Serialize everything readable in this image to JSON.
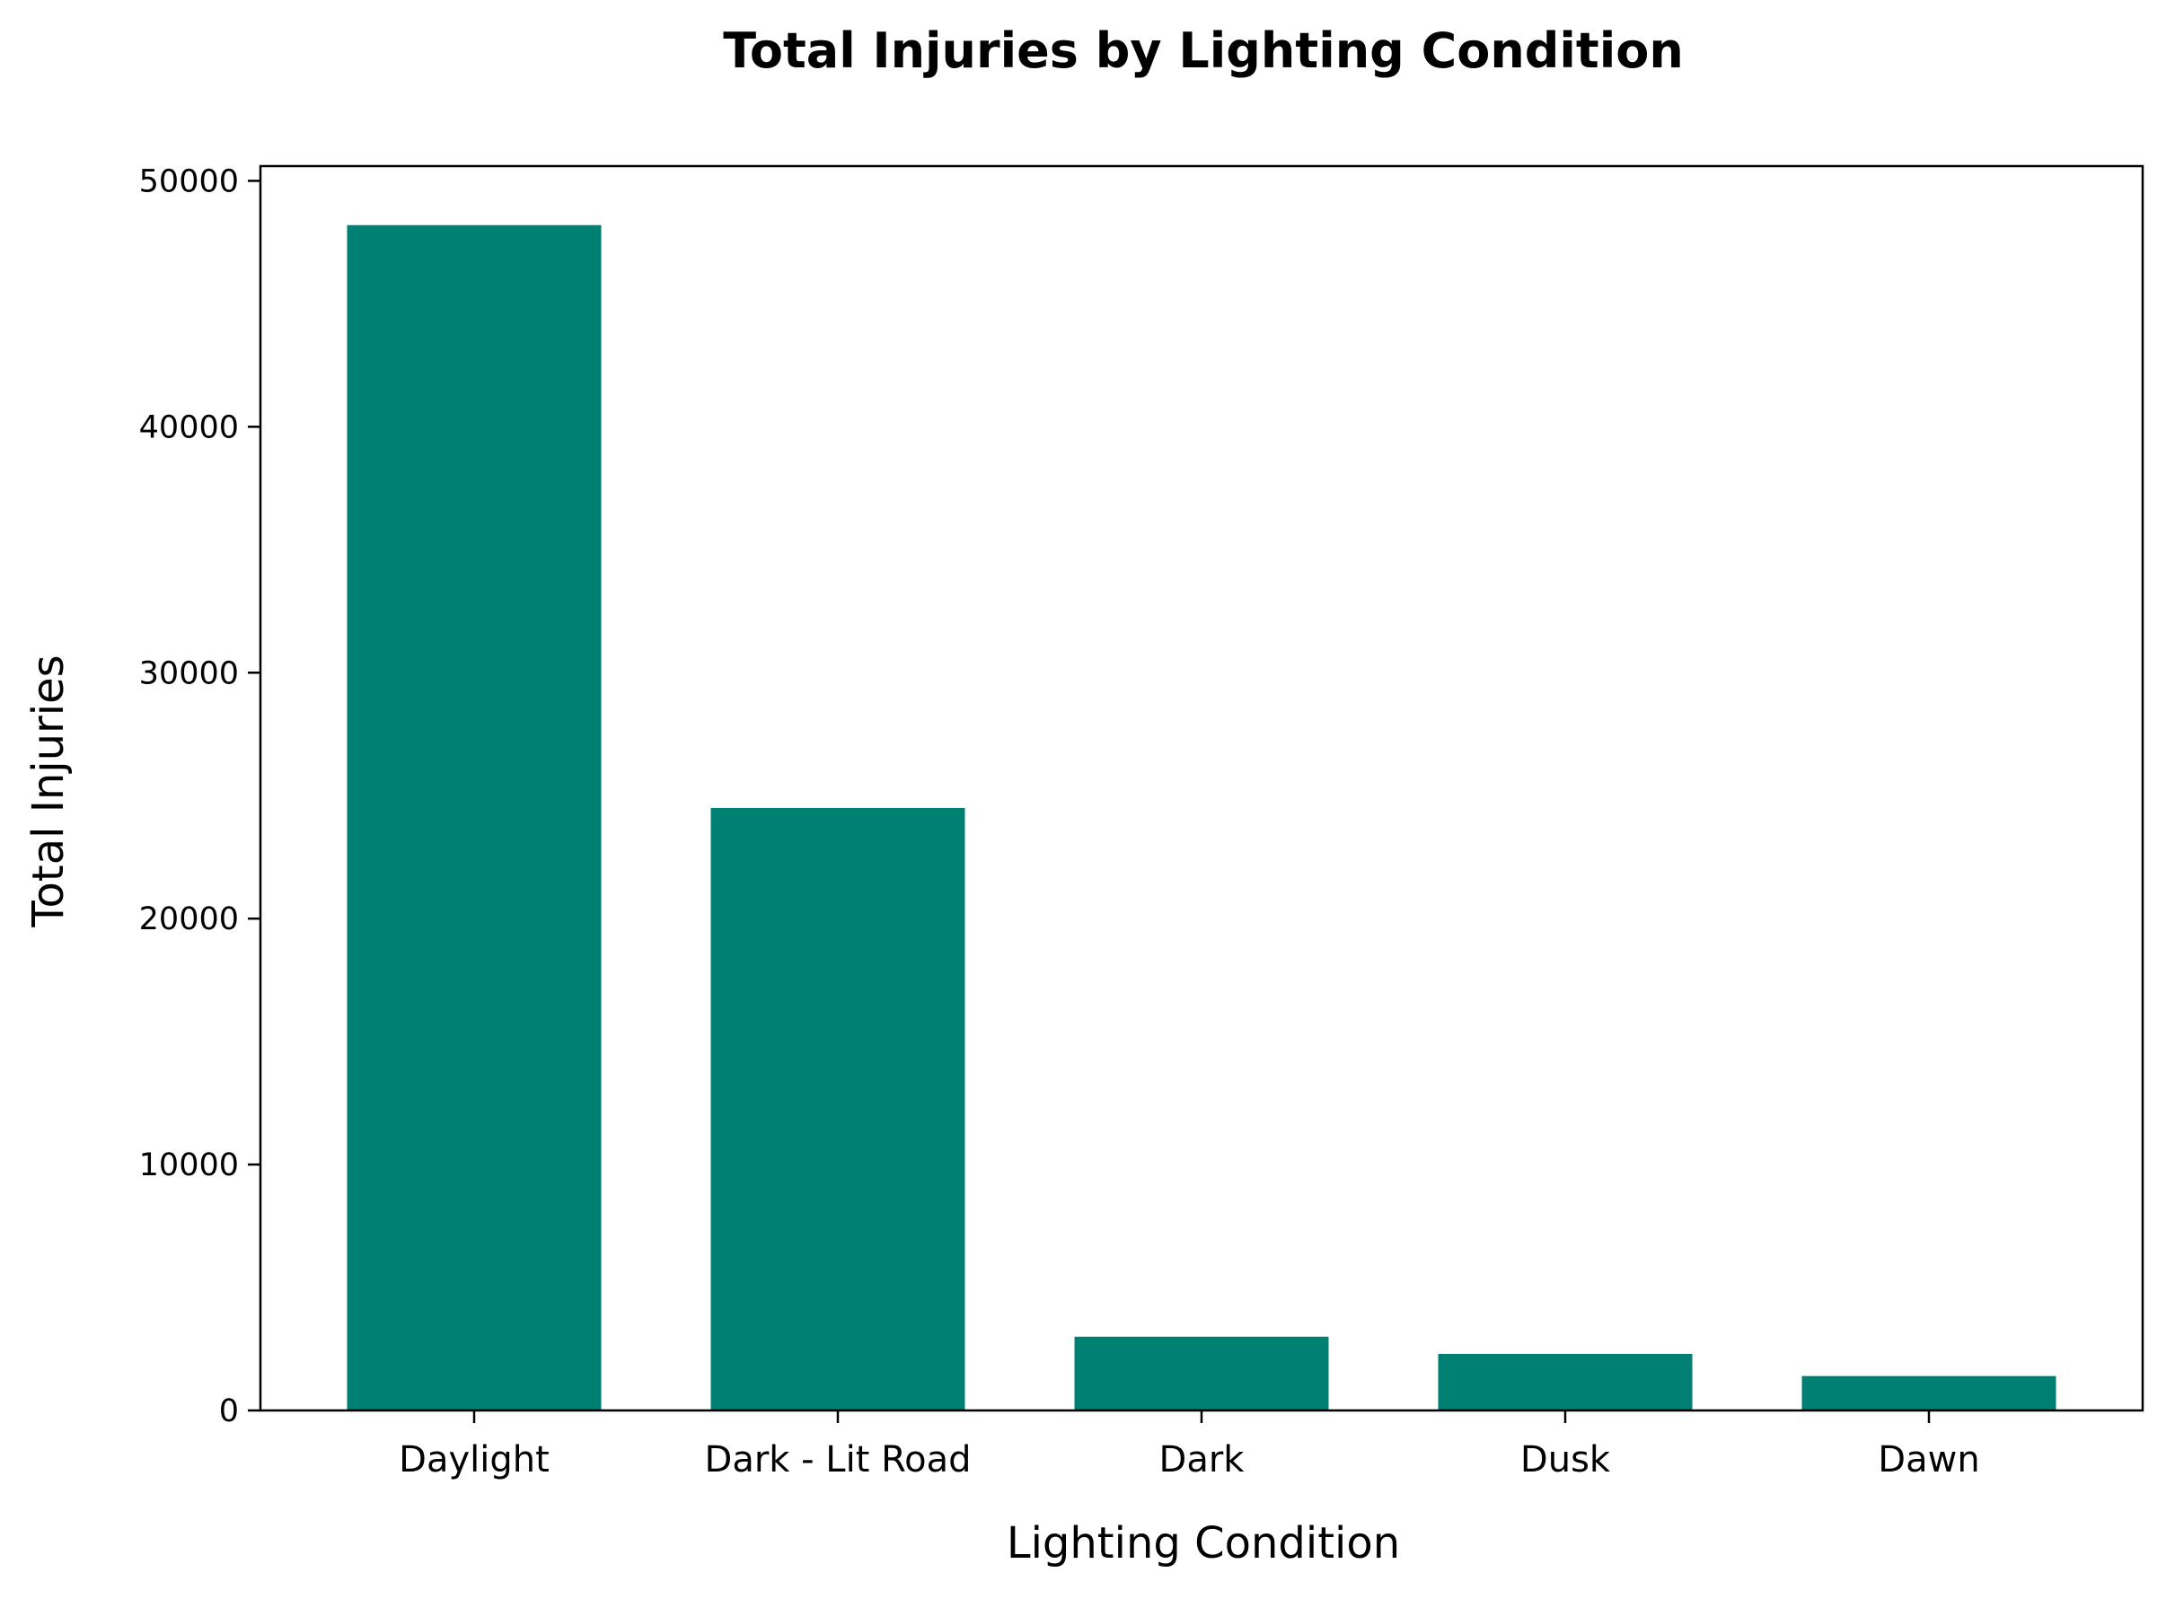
{
  "chart_data": {
    "type": "bar",
    "title": "Total Injuries by Lighting Condition",
    "xlabel": "Lighting Condition",
    "ylabel": "Total Injuries",
    "categories": [
      "Daylight",
      "Dark - Lit Road",
      "Dark",
      "Dusk",
      "Dawn"
    ],
    "values": [
      48200,
      24500,
      3000,
      2300,
      1400
    ],
    "ylim": [
      0,
      50600
    ],
    "yticks": [
      0,
      10000,
      20000,
      30000,
      40000,
      50000
    ],
    "grid": false,
    "legend": "none",
    "bar_color": "#008072"
  }
}
